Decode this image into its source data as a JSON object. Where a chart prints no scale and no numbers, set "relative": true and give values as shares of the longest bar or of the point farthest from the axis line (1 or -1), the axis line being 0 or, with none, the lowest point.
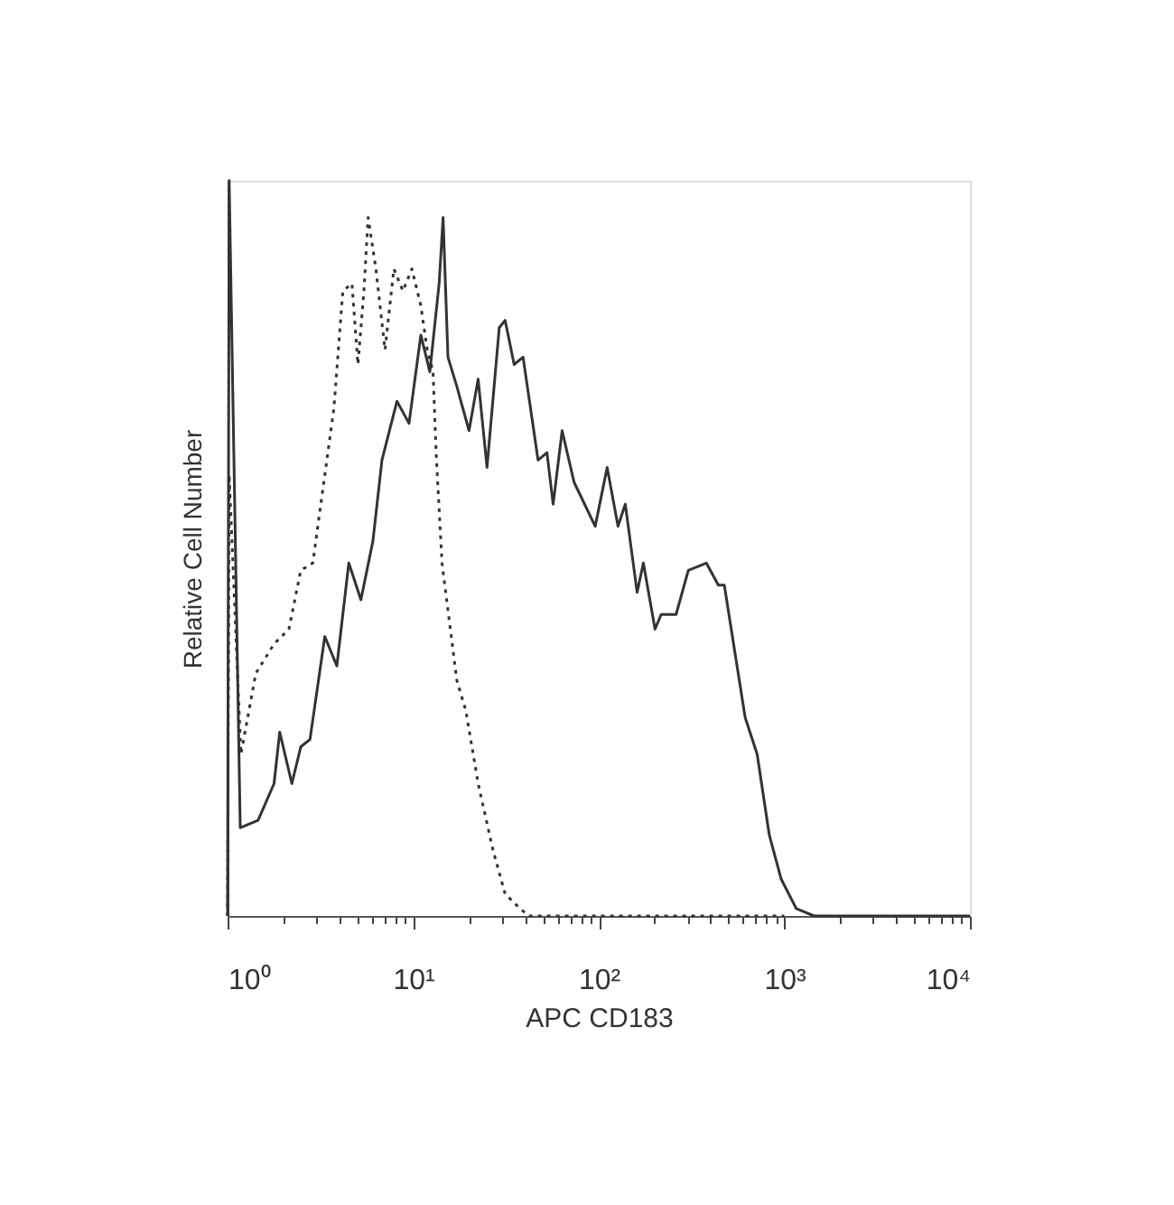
{
  "chart_data": {
    "type": "line",
    "xlabel": "APC CD183",
    "ylabel": "Relative Cell Number",
    "relative": true,
    "log": "x",
    "xlim": [
      1,
      10000
    ],
    "xticks": [
      {
        "value": 1,
        "label": "10⁰"
      },
      {
        "value": 2,
        "label": null
      },
      {
        "value": 3,
        "label": null
      },
      {
        "value": 4,
        "label": null
      },
      {
        "value": 5,
        "label": null
      },
      {
        "value": 6,
        "label": null
      },
      {
        "value": 7,
        "label": null
      },
      {
        "value": 8,
        "label": null
      },
      {
        "value": 9,
        "label": null
      },
      {
        "value": 10,
        "label": "10¹"
      },
      {
        "value": 20,
        "label": null
      },
      {
        "value": 30,
        "label": null
      },
      {
        "value": 40,
        "label": null
      },
      {
        "value": 50,
        "label": null
      },
      {
        "value": 60,
        "label": null
      },
      {
        "value": 70,
        "label": null
      },
      {
        "value": 80,
        "label": null
      },
      {
        "value": 90,
        "label": null
      },
      {
        "value": 100,
        "label": "10²"
      },
      {
        "value": 200,
        "label": null
      },
      {
        "value": 300,
        "label": null
      },
      {
        "value": 400,
        "label": null
      },
      {
        "value": 500,
        "label": null
      },
      {
        "value": 600,
        "label": null
      },
      {
        "value": 700,
        "label": null
      },
      {
        "value": 800,
        "label": null
      },
      {
        "value": 900,
        "label": null
      },
      {
        "value": 1000,
        "label": "10³"
      },
      {
        "value": 2000,
        "label": null
      },
      {
        "value": 3000,
        "label": null
      },
      {
        "value": 4000,
        "label": null
      },
      {
        "value": 5000,
        "label": null
      },
      {
        "value": 6000,
        "label": null
      },
      {
        "value": 7000,
        "label": null
      },
      {
        "value": 8000,
        "label": null
      },
      {
        "value": 9000,
        "label": null
      },
      {
        "value": 10000,
        "label": "10⁴"
      }
    ],
    "series": [
      {
        "color": "#333333",
        "line_style": "solid",
        "x": [
          1.0,
          1.02,
          1.17,
          1.46,
          1.78,
          1.91,
          2.22,
          2.48,
          2.78,
          3.34,
          3.88,
          4.5,
          5.23,
          6.07,
          6.79,
          8.18,
          9.5,
          11.0,
          12.3,
          13.8,
          14.5,
          15.4,
          17.2,
          20.0,
          22.4,
          25.0,
          29.1,
          31.3,
          35.0,
          39.1,
          47.1,
          52.6,
          56.8,
          63.5,
          73.6,
          95.7,
          111,
          127,
          139,
          161,
          174,
          201,
          217,
          261,
          304,
          380,
          441,
          475,
          615,
          714,
          830,
          962,
          1160,
          1450,
          10000
        ],
        "values": [
          0,
          1.0,
          0.12,
          0.13,
          0.18,
          0.25,
          0.18,
          0.23,
          0.24,
          0.38,
          0.34,
          0.48,
          0.43,
          0.51,
          0.62,
          0.7,
          0.67,
          0.79,
          0.74,
          0.86,
          0.95,
          0.76,
          0.72,
          0.66,
          0.73,
          0.61,
          0.8,
          0.81,
          0.75,
          0.76,
          0.62,
          0.63,
          0.56,
          0.66,
          0.59,
          0.53,
          0.61,
          0.53,
          0.56,
          0.44,
          0.48,
          0.39,
          0.41,
          0.41,
          0.47,
          0.48,
          0.45,
          0.45,
          0.27,
          0.22,
          0.11,
          0.05,
          0.01,
          0,
          0
        ]
      },
      {
        "color": "#333333",
        "line_style": "dotted",
        "x": [
          1.0,
          1.02,
          1.18,
          1.42,
          1.78,
          2.14,
          2.48,
          2.88,
          3.22,
          3.74,
          4.18,
          4.68,
          5.04,
          5.43,
          5.72,
          6.3,
          7.05,
          7.87,
          8.81,
          9.84,
          11.0,
          11.9,
          12.8,
          13.3,
          14.3,
          17.2,
          19.2,
          22.4,
          26.9,
          31.3,
          37.7,
          42.1,
          1000
        ],
        "values": [
          0,
          0.6,
          0.22,
          0.33,
          0.37,
          0.39,
          0.47,
          0.48,
          0.57,
          0.69,
          0.85,
          0.86,
          0.75,
          0.85,
          0.95,
          0.88,
          0.77,
          0.88,
          0.85,
          0.88,
          0.83,
          0.77,
          0.74,
          0.63,
          0.48,
          0.32,
          0.28,
          0.18,
          0.09,
          0.03,
          0.01,
          0,
          0
        ]
      }
    ]
  }
}
